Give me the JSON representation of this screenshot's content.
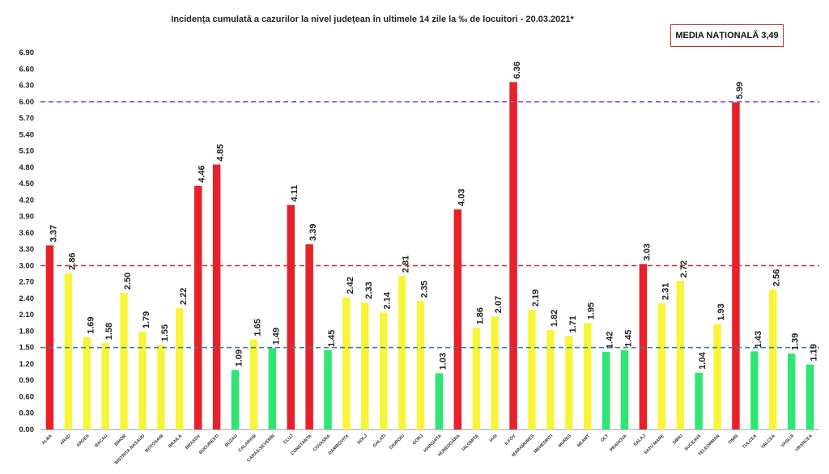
{
  "chart_data": {
    "type": "bar",
    "title": "Incidența cumulată a cazurilor la nivel județean în ultimele 14 zile la ‰ de locuitori - 20.03.2021*",
    "national_label": "MEDIA NAȚIONALĂ 3,49",
    "xlabel": "",
    "ylabel": "",
    "ylim": [
      0,
      6.9
    ],
    "yticks": [
      "0.00",
      "0.30",
      "0.60",
      "0.90",
      "1.20",
      "1.50",
      "1.80",
      "2.10",
      "2.40",
      "2.70",
      "3.00",
      "3.30",
      "3.60",
      "3.90",
      "4.20",
      "4.50",
      "4.80",
      "5.10",
      "5.40",
      "5.70",
      "6.00",
      "6.30",
      "6.60",
      "6.90"
    ],
    "categories": [
      "ALBA",
      "ARAD",
      "ARGES",
      "BACAU",
      "BIHOR",
      "BISTRITA NASAUD",
      "BOTOSANI",
      "BRAILA",
      "BRASOV",
      "BUCURESTI",
      "BUZAU",
      "CALARASI",
      "CARAS-SEVERIN",
      "CLUJ",
      "CONSTANTA",
      "COVASNA",
      "DAMBOVITA",
      "DOLJ",
      "GALATI",
      "GIURGIU",
      "GORJ",
      "HARGHITA",
      "HUNEDOARA",
      "IALOMITA",
      "IASI",
      "ILFOV",
      "MARAMURES",
      "MEHEDINTI",
      "MURES",
      "NEAMT",
      "OLT",
      "PRAHOVA",
      "SALAJ",
      "SATU MARE",
      "SIBIU",
      "SUCEAVA",
      "TELEORMAN",
      "TIMIS",
      "TULCEA",
      "VALCEA",
      "VASLUI",
      "VRANCEA"
    ],
    "values": [
      3.37,
      2.86,
      1.69,
      1.58,
      2.5,
      1.79,
      1.55,
      2.22,
      4.46,
      4.85,
      1.09,
      1.65,
      1.49,
      4.11,
      3.39,
      1.45,
      2.42,
      2.33,
      2.14,
      2.81,
      2.35,
      1.03,
      4.03,
      1.86,
      2.07,
      6.36,
      2.19,
      1.82,
      1.71,
      1.95,
      1.42,
      1.45,
      3.03,
      2.31,
      2.72,
      1.04,
      1.93,
      5.99,
      1.43,
      2.56,
      1.39,
      1.19
    ],
    "value_labels": [
      "3.37",
      "2.86",
      "1.69",
      "1.58",
      "2.50",
      "1.79",
      "1.55",
      "2.22",
      "4.46",
      "4.85",
      "1.09",
      "1.65",
      "1.49",
      "4.11",
      "3.39",
      "1.45",
      "2.42",
      "2.33",
      "2.14",
      "2.81",
      "2.35",
      "1.03",
      "4.03",
      "1.86",
      "2.07",
      "6.36",
      "2.19",
      "1.82",
      "1.71",
      "1.95",
      "1.42",
      "1.45",
      "3.03",
      "2.31",
      "2.72",
      "1.04",
      "1.93",
      "5.99",
      "1.43",
      "2.56",
      "1.39",
      "1.19"
    ],
    "thresholds": [
      {
        "value": 6.0,
        "color": "#8e5cc4"
      },
      {
        "value": 3.0,
        "color": "#d0303a"
      },
      {
        "value": 1.5,
        "color": "#3a7fa0"
      }
    ],
    "colors": {
      "red": "#e8202a",
      "yellow": "#f7f53a",
      "green": "#2ee673"
    },
    "grid": false,
    "legend": "none"
  }
}
